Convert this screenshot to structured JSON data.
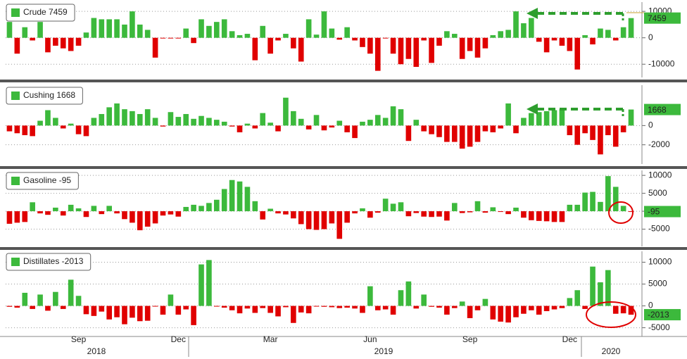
{
  "chart_data": [
    {
      "type": "bar",
      "series": [
        {
          "name": "Crude 7459",
          "color": "#3cb93c",
          "negative_color": "#e00000",
          "values": [
            6000,
            -6000,
            4000,
            -1000,
            6000,
            -5500,
            -3000,
            -4000,
            -5000,
            -3000,
            2000,
            7500,
            7000,
            7000,
            7000,
            5000,
            10000,
            5000,
            3000,
            -7500,
            -100,
            -100,
            -100,
            3500,
            -2000,
            7000,
            4500,
            6000,
            7000,
            2500,
            1000,
            1500,
            -8500,
            4500,
            -6000,
            -1000,
            1500,
            -4000,
            -9000,
            7000,
            1200,
            10000,
            3500,
            -700,
            4000,
            -1000,
            -3500,
            -6000,
            -12500,
            -200,
            -6000,
            -10000,
            -8000,
            -11000,
            -1000,
            -9500,
            -3000,
            2500,
            1500,
            -8000,
            -5000,
            -7500,
            -4000,
            1000,
            2500,
            3000,
            10000,
            5500,
            7500,
            -1500,
            -5500,
            -1000,
            -3000,
            -5000,
            -12000,
            1000,
            -2500,
            3500,
            3000,
            -1000,
            4000,
            7459
          ]
        }
      ],
      "ylim": [
        -15000,
        13500
      ],
      "yticks": [
        -10000,
        0,
        10000
      ],
      "grid": true
    },
    {
      "type": "bar",
      "series": [
        {
          "name": "Cushing 1668",
          "color": "#3cb93c",
          "negative_color": "#e00000",
          "values": [
            -600,
            -800,
            -1000,
            -1100,
            500,
            1600,
            800,
            -300,
            200,
            -900,
            -1100,
            800,
            1200,
            1900,
            2300,
            1700,
            1500,
            1200,
            1700,
            800,
            -100,
            1400,
            900,
            1200,
            700,
            1000,
            800,
            600,
            400,
            -100,
            -700,
            200,
            -300,
            1300,
            300,
            -600,
            2900,
            1500,
            700,
            -400,
            1100,
            -500,
            -200,
            500,
            -700,
            -1300,
            400,
            600,
            1100,
            800,
            2000,
            1700,
            -1600,
            600,
            -600,
            -900,
            -1200,
            -1700,
            -1700,
            -2400,
            -2200,
            -1700,
            -600,
            -700,
            -300,
            2300,
            -800,
            800,
            1300,
            1400,
            1500,
            1600,
            1700,
            -1000,
            -2000,
            -800,
            -1500,
            -3000,
            -1000,
            -2200,
            -700,
            1668
          ]
        }
      ],
      "ylim": [
        -4000,
        4200
      ],
      "yticks": [
        -2000,
        0
      ],
      "grid": true
    },
    {
      "type": "bar",
      "series": [
        {
          "name": "Gasoline -95",
          "color": "#3cb93c",
          "negative_color": "#e00000",
          "values": [
            -3500,
            -3200,
            -3000,
            2500,
            -600,
            -1000,
            1000,
            -1200,
            1800,
            800,
            -1600,
            1500,
            -800,
            1500,
            -600,
            -2200,
            -3200,
            -5300,
            -4300,
            -3400,
            -1200,
            -900,
            -1500,
            1200,
            1800,
            1500,
            2300,
            3200,
            6200,
            8700,
            8300,
            6800,
            2800,
            -2300,
            700,
            -600,
            -900,
            -2000,
            -3600,
            -5000,
            -5200,
            -5000,
            -3400,
            -7700,
            -3200,
            -600,
            800,
            -1800,
            -400,
            3500,
            2100,
            2500,
            -1400,
            -500,
            -1500,
            -1600,
            -1500,
            -2600,
            2300,
            -500,
            -300,
            2800,
            -400,
            1100,
            -200,
            -800,
            1000,
            -1800,
            -2500,
            -2700,
            -2800,
            -3000,
            -3000,
            1800,
            1800,
            5200,
            5400,
            2600,
            9800,
            6800,
            1500,
            -95
          ]
        }
      ],
      "ylim": [
        -9800,
        11400
      ],
      "yticks": [
        -5000,
        0,
        5000,
        10000
      ],
      "grid": true
    },
    {
      "type": "bar",
      "series": [
        {
          "name": "Distillates -2013",
          "color": "#3cb93c",
          "negative_color": "#e00000",
          "values": [
            -200,
            -400,
            3000,
            -700,
            2600,
            -1100,
            3200,
            -700,
            6000,
            2300,
            -1900,
            -2300,
            -1300,
            -3100,
            -2600,
            -4200,
            -2700,
            -3500,
            -3400,
            -100,
            -2000,
            2600,
            -2000,
            -800,
            -4400,
            9500,
            10500,
            -100,
            -400,
            -1000,
            -1700,
            -600,
            -1600,
            -500,
            -1600,
            -2400,
            -300,
            -3900,
            -1500,
            -1700,
            -100,
            -200,
            -300,
            -500,
            -400,
            -600,
            -1600,
            4500,
            -1000,
            -800,
            -2000,
            3600,
            5600,
            -600,
            2600,
            -200,
            -400,
            -2000,
            -500,
            1000,
            -2800,
            -1000,
            1600,
            -3100,
            -3600,
            -3800,
            -2600,
            -1800,
            -1000,
            -2000,
            -1200,
            -800,
            -500,
            1800,
            3600,
            -700,
            9000,
            5400,
            8200,
            -1800,
            -1700,
            -2013
          ]
        }
      ],
      "categories": [
        null,
        null,
        null,
        null,
        null,
        null,
        null,
        null,
        null,
        "Sep",
        null,
        null,
        null,
        null,
        null,
        null,
        null,
        null,
        null,
        null,
        null,
        null,
        "Dec",
        null,
        null,
        null,
        null,
        null,
        null,
        null,
        null,
        null,
        null,
        null,
        "Mar",
        null,
        null,
        null,
        null,
        null,
        null,
        null,
        null,
        null,
        null,
        null,
        null,
        "Jun",
        null,
        null,
        null,
        null,
        null,
        null,
        null,
        null,
        null,
        null,
        null,
        null,
        "Sep",
        null,
        null,
        null,
        null,
        null,
        null,
        null,
        null,
        null,
        null,
        null,
        null,
        "Dec",
        null,
        null,
        null,
        null,
        null,
        null,
        null,
        null
      ],
      "x_groups": [
        "2018",
        "2019",
        "2020"
      ],
      "ylim": [
        -7000,
        12500
      ],
      "yticks": [
        -5000,
        0,
        5000,
        10000
      ],
      "grid": true
    }
  ]
}
